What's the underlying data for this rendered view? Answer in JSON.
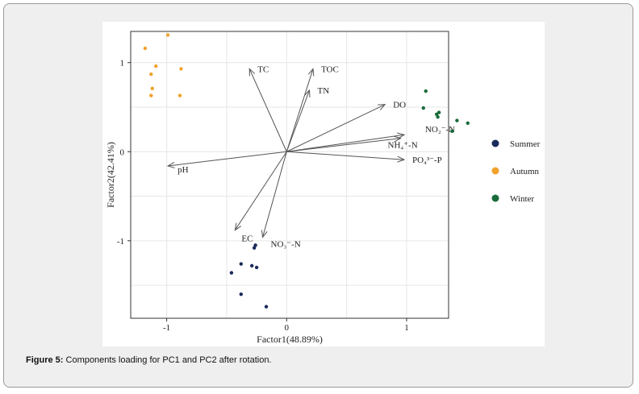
{
  "caption": {
    "label": "Figure 5:",
    "text": " Components loading for PC1 and PC2 after rotation."
  },
  "chart_data": {
    "type": "scatter",
    "subtype": "biplot",
    "xlabel": "Factor1(48.89%)",
    "ylabel": "Factor2(42.41%)",
    "xlim": [
      -1.3,
      1.35
    ],
    "ylim": [
      -1.87,
      1.35
    ],
    "xticks": [
      -1,
      0,
      1
    ],
    "yticks": [
      -1,
      0,
      1
    ],
    "grid": true,
    "legend_position": "right",
    "series": [
      {
        "name": "Summer",
        "color": "#1b2a5c",
        "points": [
          {
            "x": -0.26,
            "y": -1.05
          },
          {
            "x": -0.27,
            "y": -1.08
          },
          {
            "x": -0.38,
            "y": -1.26
          },
          {
            "x": -0.29,
            "y": -1.28
          },
          {
            "x": -0.25,
            "y": -1.3
          },
          {
            "x": -0.46,
            "y": -1.36
          },
          {
            "x": -0.38,
            "y": -1.6
          },
          {
            "x": -0.17,
            "y": -1.74
          }
        ]
      },
      {
        "name": "Autumn",
        "color": "#f0a22b",
        "points": [
          {
            "x": -0.99,
            "y": 1.31
          },
          {
            "x": -1.18,
            "y": 1.16
          },
          {
            "x": -1.09,
            "y": 0.96
          },
          {
            "x": -0.88,
            "y": 0.93
          },
          {
            "x": -1.13,
            "y": 0.87
          },
          {
            "x": -1.12,
            "y": 0.71
          },
          {
            "x": -1.13,
            "y": 0.63
          },
          {
            "x": -0.89,
            "y": 0.63
          }
        ]
      },
      {
        "name": "Winter",
        "color": "#1a6b3a",
        "points": [
          {
            "x": 1.16,
            "y": 0.68
          },
          {
            "x": 1.14,
            "y": 0.49
          },
          {
            "x": 1.27,
            "y": 0.44
          },
          {
            "x": 1.25,
            "y": 0.42
          },
          {
            "x": 1.26,
            "y": 0.39
          },
          {
            "x": 1.42,
            "y": 0.35
          },
          {
            "x": 1.51,
            "y": 0.32
          },
          {
            "x": 1.38,
            "y": 0.23
          }
        ]
      }
    ],
    "loadings": [
      {
        "label": "TC",
        "x": -0.31,
        "y": 0.93
      },
      {
        "label": "TOC",
        "x": 0.22,
        "y": 0.93
      },
      {
        "label": "TN",
        "x": 0.19,
        "y": 0.69
      },
      {
        "label": "DO",
        "x": 0.82,
        "y": 0.53
      },
      {
        "label": "NO₂⁻-N",
        "x": 0.98,
        "y": 0.19
      },
      {
        "label": "NH₄⁺-N",
        "x": 0.95,
        "y": 0.15
      },
      {
        "label": "PO₄³⁻-P",
        "x": 0.98,
        "y": -0.09
      },
      {
        "label": "pH",
        "x": -0.99,
        "y": -0.16
      },
      {
        "label": "EC",
        "x": -0.43,
        "y": -0.88
      },
      {
        "label": "NO₃⁻-N",
        "x": -0.2,
        "y": -0.96
      }
    ]
  }
}
